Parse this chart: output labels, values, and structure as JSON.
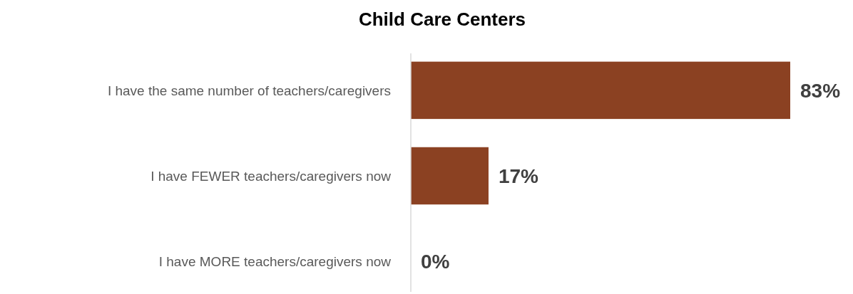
{
  "chart_data": {
    "type": "bar",
    "orientation": "horizontal",
    "title": "Child Care Centers",
    "categories": [
      "I have the same number of teachers/caregivers",
      "I have FEWER teachers/caregivers now",
      "I have MORE teachers/caregivers now"
    ],
    "values": [
      83,
      17,
      0
    ],
    "color": "#8b4122",
    "value_labels": [
      "83%",
      "17%",
      "0%"
    ]
  }
}
